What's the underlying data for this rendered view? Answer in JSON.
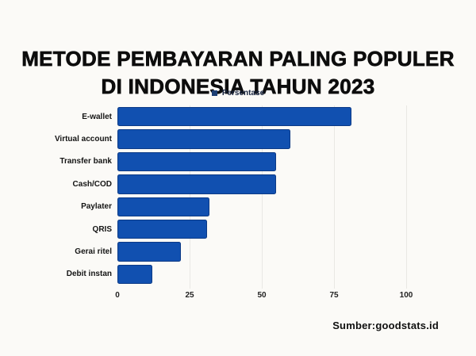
{
  "title": {
    "line1": "METODE PEMBAYARAN PALING POPULER",
    "line2": "DI INDONESIA TAHUN 2023"
  },
  "legend": {
    "label": "Persentase",
    "marker_color": "#1c3f74"
  },
  "source": "Sumber:goodstats.id",
  "colors": {
    "background": "#fbfaf7",
    "bar": "#1150b0",
    "gridline": "#e9e8e4",
    "title_text": "#0d0d0d"
  },
  "chart_data": {
    "type": "bar",
    "orientation": "horizontal",
    "title": "METODE PEMBAYARAN PALING POPULER DI INDONESIA TAHUN 2023",
    "series_name": "Persentase",
    "categories": [
      "E-wallet",
      "Virtual account",
      "Transfer bank",
      "Cash/COD",
      "Paylater",
      "QRIS",
      "Gerai ritel",
      "Debit instan"
    ],
    "values": [
      81,
      60,
      55,
      55,
      32,
      31,
      22,
      12
    ],
    "xlabel": "",
    "ylabel": "",
    "xlim": [
      0,
      100
    ],
    "xticks": [
      0,
      25,
      50,
      75,
      100
    ],
    "grid": "vertical",
    "legend_position": "top-center",
    "unit": "percent"
  }
}
